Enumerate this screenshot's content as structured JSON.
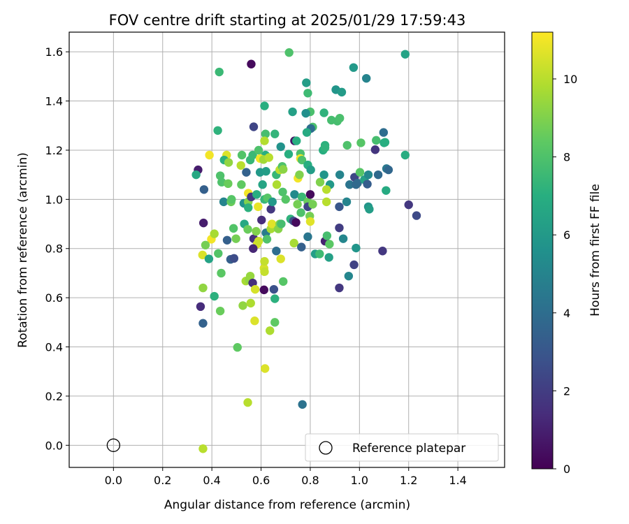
{
  "chart_data": {
    "type": "scatter",
    "title": "FOV centre drift starting at 2025/01/29 17:59:43",
    "xlabel": "Angular distance from reference (arcmin)",
    "ylabel": "Rotation from reference (arcmin)",
    "xlim": [
      -0.18,
      1.59
    ],
    "ylim": [
      -0.09,
      1.68
    ],
    "xticks": [
      "0.0",
      "0.2",
      "0.4",
      "0.6",
      "0.8",
      "1.0",
      "1.2",
      "1.4"
    ],
    "yticks": [
      "0.0",
      "0.2",
      "0.4",
      "0.6",
      "0.8",
      "1.0",
      "1.2",
      "1.4",
      "1.6"
    ],
    "grid": true,
    "colormap": "viridis",
    "colorbar": {
      "label": "Hours from first FF file",
      "range": [
        0,
        11.2
      ],
      "ticks": [
        "0",
        "2",
        "4",
        "6",
        "8",
        "10"
      ]
    },
    "legend": {
      "position": "lower-right",
      "entries": [
        "Reference platepar"
      ]
    },
    "reference_point": {
      "x": 0.0,
      "y": 0.0
    },
    "points": [
      [
        0.56,
        1.55,
        0.3
      ],
      [
        0.714,
        1.597,
        8.0
      ],
      [
        0.43,
        1.518,
        7.5
      ],
      [
        1.186,
        1.59,
        6.4
      ],
      [
        0.976,
        1.536,
        6.0
      ],
      [
        1.028,
        1.492,
        5.0
      ],
      [
        0.904,
        1.446,
        5.8
      ],
      [
        0.928,
        1.436,
        6.1
      ],
      [
        0.784,
        1.474,
        6.2
      ],
      [
        0.79,
        1.432,
        7.6
      ],
      [
        0.614,
        1.38,
        7.0
      ],
      [
        0.728,
        1.356,
        6.3
      ],
      [
        0.8,
        1.356,
        7.9
      ],
      [
        0.856,
        1.352,
        7.2
      ],
      [
        0.782,
        1.35,
        5.5
      ],
      [
        0.886,
        1.322,
        7.8
      ],
      [
        0.91,
        1.318,
        7.8
      ],
      [
        0.92,
        1.33,
        7.9
      ],
      [
        0.424,
        1.28,
        7.2
      ],
      [
        0.57,
        1.295,
        2.3
      ],
      [
        0.618,
        1.266,
        7.8
      ],
      [
        0.656,
        1.266,
        7.3
      ],
      [
        0.81,
        1.294,
        7.9
      ],
      [
        0.802,
        1.288,
        4.0
      ],
      [
        0.786,
        1.272,
        6.8
      ],
      [
        1.098,
        1.272,
        4.0
      ],
      [
        0.736,
        1.238,
        0.6
      ],
      [
        0.614,
        1.238,
        9.9
      ],
      [
        0.744,
        1.238,
        7.0
      ],
      [
        0.86,
        1.22,
        7.1
      ],
      [
        0.95,
        1.22,
        8.0
      ],
      [
        1.006,
        1.23,
        8.2
      ],
      [
        1.068,
        1.24,
        7.8
      ],
      [
        1.1,
        1.23,
        6.8
      ],
      [
        1.064,
        1.202,
        1.7
      ],
      [
        1.104,
        1.232,
        7.0
      ],
      [
        1.186,
        1.18,
        6.9
      ],
      [
        0.39,
        1.18,
        11.0
      ],
      [
        0.46,
        1.18,
        10.6
      ],
      [
        0.522,
        1.18,
        8.1
      ],
      [
        0.618,
        1.18,
        7.0
      ],
      [
        0.68,
        1.214,
        5.7
      ],
      [
        0.712,
        1.184,
        7.0
      ],
      [
        0.76,
        1.186,
        7.9
      ],
      [
        0.852,
        1.2,
        7.0
      ],
      [
        0.86,
        1.21,
        7.2
      ],
      [
        0.556,
        1.16,
        7.4
      ],
      [
        0.566,
        1.18,
        7.5
      ],
      [
        0.59,
        1.2,
        8.0
      ],
      [
        0.596,
        1.166,
        11.0
      ],
      [
        0.61,
        1.162,
        9.6
      ],
      [
        0.632,
        1.17,
        10.0
      ],
      [
        0.76,
        1.166,
        11.0
      ],
      [
        0.766,
        1.16,
        8.0
      ],
      [
        0.344,
        1.12,
        0.9
      ],
      [
        0.336,
        1.1,
        6.7
      ],
      [
        0.434,
        1.096,
        8.0
      ],
      [
        0.45,
        1.16,
        7.1
      ],
      [
        0.468,
        1.15,
        9.3
      ],
      [
        0.518,
        1.138,
        10.0
      ],
      [
        0.54,
        1.11,
        3.5
      ],
      [
        0.596,
        1.11,
        6.0
      ],
      [
        0.62,
        1.114,
        6.2
      ],
      [
        0.662,
        1.1,
        7.4
      ],
      [
        0.676,
        1.12,
        10.1
      ],
      [
        0.686,
        1.134,
        8.0
      ],
      [
        0.69,
        1.122,
        9.2
      ],
      [
        0.75,
        1.086,
        11.0
      ],
      [
        0.756,
        1.1,
        9.0
      ],
      [
        0.79,
        1.14,
        7.0
      ],
      [
        0.802,
        1.12,
        6.2
      ],
      [
        0.856,
        1.1,
        5.8
      ],
      [
        0.84,
        1.07,
        9.0
      ],
      [
        0.88,
        1.06,
        6.0
      ],
      [
        0.92,
        1.1,
        5.0
      ],
      [
        0.96,
        1.06,
        4.3
      ],
      [
        0.98,
        1.09,
        2.4
      ],
      [
        0.992,
        1.066,
        3.9
      ],
      [
        1.002,
        1.11,
        8.2
      ],
      [
        1.02,
        1.08,
        6.3
      ],
      [
        1.036,
        1.1,
        5.2
      ],
      [
        1.032,
        1.062,
        3.3
      ],
      [
        1.076,
        1.1,
        3.8
      ],
      [
        1.108,
        1.036,
        6.8
      ],
      [
        1.11,
        1.125,
        4.5
      ],
      [
        1.118,
        1.12,
        3.7
      ],
      [
        0.368,
        1.04,
        3.4
      ],
      [
        0.44,
        1.07,
        8.0
      ],
      [
        0.448,
        0.99,
        5.0
      ],
      [
        0.466,
        1.064,
        8.6
      ],
      [
        0.478,
        0.99,
        8.6
      ],
      [
        0.48,
        1.0,
        8.2
      ],
      [
        0.52,
        1.06,
        8.4
      ],
      [
        0.53,
        0.984,
        5.6
      ],
      [
        0.548,
        1.025,
        11.0
      ],
      [
        0.548,
        0.99,
        9.0
      ],
      [
        0.548,
        0.966,
        7.1
      ],
      [
        0.56,
        1.01,
        1.8
      ],
      [
        0.582,
        1.02,
        7.0
      ],
      [
        0.588,
        0.97,
        10.8
      ],
      [
        0.606,
        1.06,
        6.5
      ],
      [
        0.614,
        1.0,
        7.4
      ],
      [
        0.626,
        1.006,
        8.2
      ],
      [
        0.64,
        0.96,
        1.8
      ],
      [
        0.646,
        0.99,
        6.0
      ],
      [
        0.664,
        1.06,
        9.8
      ],
      [
        0.688,
        1.03,
        8.0
      ],
      [
        0.7,
        1.0,
        8.2
      ],
      [
        0.736,
        1.02,
        5.3
      ],
      [
        0.748,
        0.98,
        8.8
      ],
      [
        0.762,
        0.946,
        8.0
      ],
      [
        0.766,
        1.01,
        7.5
      ],
      [
        0.79,
        0.99,
        8.6
      ],
      [
        0.79,
        0.97,
        2.3
      ],
      [
        0.8,
        1.02,
        0.3
      ],
      [
        0.81,
        0.98,
        8.8
      ],
      [
        0.866,
        1.04,
        10.0
      ],
      [
        0.866,
        0.99,
        10.0
      ],
      [
        0.918,
        0.97,
        3.0
      ],
      [
        0.948,
        0.99,
        5.0
      ],
      [
        0.986,
        1.06,
        3.8
      ],
      [
        1.036,
        0.97,
        5.8
      ],
      [
        1.04,
        0.96,
        6.2
      ],
      [
        1.2,
        0.978,
        1.8
      ],
      [
        1.232,
        0.934,
        2.5
      ],
      [
        0.366,
        0.904,
        0.9
      ],
      [
        0.398,
        0.838,
        11.0
      ],
      [
        0.374,
        0.814,
        8.8
      ],
      [
        0.41,
        0.86,
        9.7
      ],
      [
        0.462,
        0.834,
        3.4
      ],
      [
        0.488,
        0.882,
        8.1
      ],
      [
        0.498,
        0.84,
        8.8
      ],
      [
        0.532,
        0.9,
        6.7
      ],
      [
        0.546,
        0.878,
        8.6
      ],
      [
        0.57,
        0.84,
        1.5
      ],
      [
        0.58,
        0.87,
        9.0
      ],
      [
        0.584,
        0.818,
        10.6
      ],
      [
        0.59,
        0.83,
        10.3
      ],
      [
        0.602,
        0.916,
        1.4
      ],
      [
        0.62,
        0.864,
        4.6
      ],
      [
        0.624,
        0.838,
        8.0
      ],
      [
        0.64,
        0.88,
        9.7
      ],
      [
        0.644,
        0.9,
        10.7
      ],
      [
        0.67,
        0.88,
        9.1
      ],
      [
        0.676,
        0.9,
        9.0
      ],
      [
        0.682,
        0.9,
        7.8
      ],
      [
        0.72,
        0.92,
        7.2
      ],
      [
        0.732,
        0.912,
        2.6
      ],
      [
        0.734,
        0.822,
        9.7
      ],
      [
        0.742,
        0.906,
        0.3
      ],
      [
        0.764,
        0.806,
        3.4
      ],
      [
        0.79,
        0.848,
        4.4
      ],
      [
        0.798,
        0.932,
        8.8
      ],
      [
        0.8,
        0.91,
        10.7
      ],
      [
        0.82,
        0.778,
        6.2
      ],
      [
        0.838,
        0.778,
        7.6
      ],
      [
        0.86,
        0.83,
        1.0
      ],
      [
        0.868,
        0.852,
        7.8
      ],
      [
        0.876,
        0.764,
        6.3
      ],
      [
        0.878,
        0.818,
        8.3
      ],
      [
        0.918,
        0.884,
        2.0
      ],
      [
        0.934,
        0.84,
        5.1
      ],
      [
        0.986,
        0.802,
        5.8
      ],
      [
        1.094,
        0.79,
        1.8
      ],
      [
        0.362,
        0.774,
        10.6
      ],
      [
        0.388,
        0.758,
        6.4
      ],
      [
        0.426,
        0.78,
        8.1
      ],
      [
        0.438,
        0.7,
        8.3
      ],
      [
        0.476,
        0.756,
        3.4
      ],
      [
        0.49,
        0.76,
        2.6
      ],
      [
        0.568,
        0.8,
        1.2
      ],
      [
        0.612,
        0.72,
        10.5
      ],
      [
        0.614,
        0.748,
        10.2
      ],
      [
        0.614,
        0.706,
        10.2
      ],
      [
        0.662,
        0.79,
        4.0
      ],
      [
        0.68,
        0.758,
        10.6
      ],
      [
        0.354,
        0.564,
        1.4
      ],
      [
        0.364,
        0.64,
        9.3
      ],
      [
        0.364,
        0.496,
        3.5
      ],
      [
        0.41,
        0.606,
        7.1
      ],
      [
        0.434,
        0.546,
        8.6
      ],
      [
        0.504,
        0.398,
        8.4
      ],
      [
        0.526,
        0.568,
        9.3
      ],
      [
        0.538,
        0.668,
        9.7
      ],
      [
        0.552,
        0.672,
        9.3
      ],
      [
        0.556,
        0.688,
        9.4
      ],
      [
        0.558,
        0.578,
        9.8
      ],
      [
        0.566,
        0.66,
        1.5
      ],
      [
        0.574,
        0.506,
        10.6
      ],
      [
        0.576,
        0.634,
        10.5
      ],
      [
        0.612,
        0.632,
        0.3
      ],
      [
        0.636,
        0.466,
        9.8
      ],
      [
        0.652,
        0.634,
        2.8
      ],
      [
        0.656,
        0.596,
        7.1
      ],
      [
        0.656,
        0.5,
        8.4
      ],
      [
        0.69,
        0.666,
        8.2
      ],
      [
        0.616,
        0.312,
        10.6
      ],
      [
        0.546,
        0.174,
        10.0
      ],
      [
        0.768,
        0.166,
        4.2
      ],
      [
        0.364,
        -0.014,
        10.0
      ],
      [
        0.918,
        0.64,
        1.8
      ],
      [
        0.956,
        0.688,
        5.1
      ],
      [
        0.978,
        0.734,
        2.2
      ]
    ]
  }
}
